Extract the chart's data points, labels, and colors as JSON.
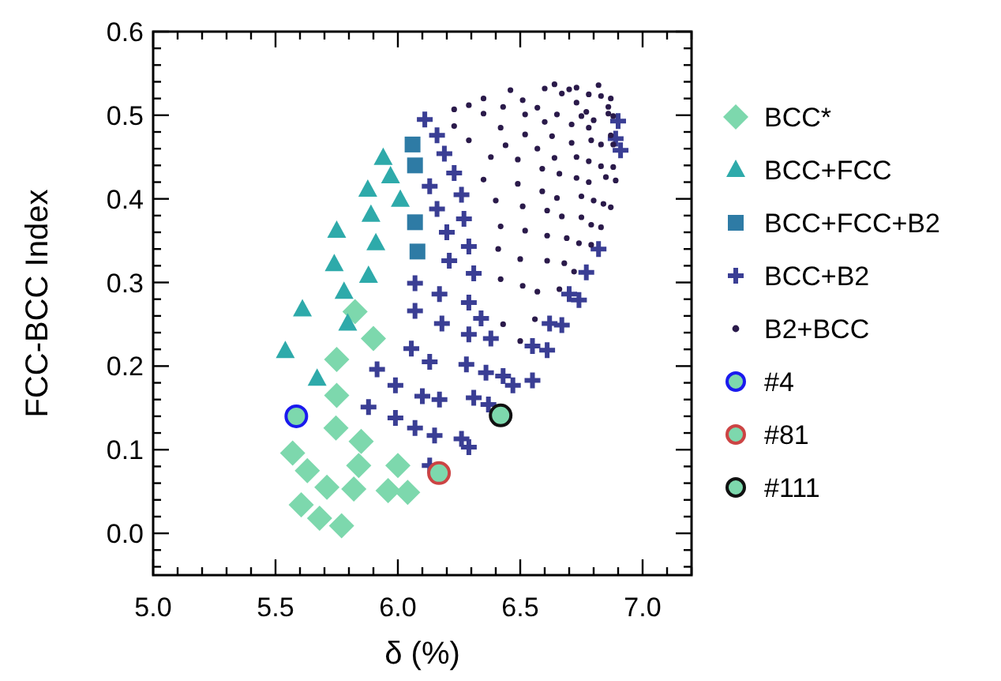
{
  "chart_data": {
    "type": "scatter",
    "xlabel": "δ (%)",
    "ylabel": "FCC-BCC Index",
    "xlim": [
      5.0,
      7.2
    ],
    "ylim": [
      -0.05,
      0.6
    ],
    "xticks": [
      {
        "value": 5.0,
        "label": "5.0"
      },
      {
        "value": 5.1,
        "label": null
      },
      {
        "value": 5.2,
        "label": null
      },
      {
        "value": 5.3,
        "label": null
      },
      {
        "value": 5.4,
        "label": null
      },
      {
        "value": 5.5,
        "label": "5.5"
      },
      {
        "value": 5.6,
        "label": null
      },
      {
        "value": 5.7,
        "label": null
      },
      {
        "value": 5.8,
        "label": null
      },
      {
        "value": 5.9,
        "label": null
      },
      {
        "value": 6.0,
        "label": "6.0"
      },
      {
        "value": 6.1,
        "label": null
      },
      {
        "value": 6.2,
        "label": null
      },
      {
        "value": 6.3,
        "label": null
      },
      {
        "value": 6.4,
        "label": null
      },
      {
        "value": 6.5,
        "label": "6.5"
      },
      {
        "value": 6.6,
        "label": null
      },
      {
        "value": 6.7,
        "label": null
      },
      {
        "value": 6.8,
        "label": null
      },
      {
        "value": 6.9,
        "label": null
      },
      {
        "value": 7.0,
        "label": "7.0"
      },
      {
        "value": 7.1,
        "label": null
      },
      {
        "value": 7.2,
        "label": null
      }
    ],
    "yticks": [
      {
        "value": -0.04,
        "label": null
      },
      {
        "value": -0.02,
        "label": null
      },
      {
        "value": 0.0,
        "label": "0.0"
      },
      {
        "value": 0.02,
        "label": null
      },
      {
        "value": 0.04,
        "label": null
      },
      {
        "value": 0.06,
        "label": null
      },
      {
        "value": 0.08,
        "label": null
      },
      {
        "value": 0.1,
        "label": "0.1"
      },
      {
        "value": 0.12,
        "label": null
      },
      {
        "value": 0.14,
        "label": null
      },
      {
        "value": 0.16,
        "label": null
      },
      {
        "value": 0.18,
        "label": null
      },
      {
        "value": 0.2,
        "label": "0.2"
      },
      {
        "value": 0.22,
        "label": null
      },
      {
        "value": 0.24,
        "label": null
      },
      {
        "value": 0.26,
        "label": null
      },
      {
        "value": 0.28,
        "label": null
      },
      {
        "value": 0.3,
        "label": "0.3"
      },
      {
        "value": 0.32,
        "label": null
      },
      {
        "value": 0.34,
        "label": null
      },
      {
        "value": 0.36,
        "label": null
      },
      {
        "value": 0.38,
        "label": null
      },
      {
        "value": 0.4,
        "label": "0.4"
      },
      {
        "value": 0.42,
        "label": null
      },
      {
        "value": 0.44,
        "label": null
      },
      {
        "value": 0.46,
        "label": null
      },
      {
        "value": 0.48,
        "label": null
      },
      {
        "value": 0.5,
        "label": "0.5"
      },
      {
        "value": 0.52,
        "label": null
      },
      {
        "value": 0.54,
        "label": null
      },
      {
        "value": 0.56,
        "label": null
      },
      {
        "value": 0.58,
        "label": null
      },
      {
        "value": 0.6,
        "label": "0.6"
      }
    ],
    "grid": false,
    "legend": "right",
    "series": [
      {
        "name": "BCC*",
        "color": "#7dd8ad",
        "marker": "diamond",
        "x": [
          5.825,
          5.9,
          5.75,
          5.75,
          5.747,
          5.85,
          5.57,
          5.84,
          6.0,
          5.63,
          5.71,
          5.82,
          5.96,
          6.04,
          5.605,
          5.68,
          5.77
        ],
        "values": [
          0.265,
          0.233,
          0.208,
          0.165,
          0.126,
          0.11,
          0.096,
          0.081,
          0.081,
          0.075,
          0.055,
          0.053,
          0.051,
          0.049,
          0.034,
          0.018,
          0.009
        ]
      },
      {
        "name": "BCC+FCC",
        "color": "#2eaaaa",
        "marker": "triangle",
        "x": [
          5.94,
          5.97,
          5.877,
          6.01,
          5.89,
          5.75,
          5.91,
          5.74,
          5.88,
          5.78,
          5.61,
          5.795,
          5.54,
          5.67
        ],
        "values": [
          0.449,
          0.427,
          0.411,
          0.399,
          0.381,
          0.362,
          0.347,
          0.322,
          0.308,
          0.289,
          0.268,
          0.251,
          0.218,
          0.185
        ]
      },
      {
        "name": "BCC+FCC+B2",
        "color": "#2e7ba5",
        "marker": "square",
        "x": [
          6.06,
          6.07,
          6.07,
          6.08
        ],
        "values": [
          0.465,
          0.44,
          0.372,
          0.337
        ]
      },
      {
        "name": "BCC+B2",
        "color": "#3a3e94",
        "marker": "cross",
        "x": [
          6.11,
          6.16,
          6.13,
          6.16,
          6.07,
          6.17,
          6.07,
          6.055,
          6.13,
          5.915,
          5.99,
          6.1,
          5.88,
          5.99,
          6.07,
          6.15,
          6.13,
          6.19,
          6.23,
          6.26,
          6.27,
          6.2,
          6.29,
          6.21,
          6.31,
          6.29,
          6.9,
          6.89,
          6.91,
          6.82,
          6.77,
          6.7,
          6.74,
          6.18,
          6.34,
          6.29,
          6.38,
          6.62,
          6.67,
          6.55,
          6.61,
          6.28,
          6.36,
          6.43,
          6.47,
          6.55,
          6.17,
          6.31,
          6.37,
          6.26,
          6.29
        ],
        "values": [
          0.495,
          0.476,
          0.415,
          0.388,
          0.299,
          0.286,
          0.266,
          0.221,
          0.205,
          0.196,
          0.177,
          0.164,
          0.151,
          0.138,
          0.126,
          0.117,
          0.081,
          0.454,
          0.431,
          0.405,
          0.376,
          0.36,
          0.343,
          0.326,
          0.311,
          0.276,
          0.493,
          0.472,
          0.458,
          0.34,
          0.312,
          0.286,
          0.279,
          0.251,
          0.257,
          0.238,
          0.233,
          0.251,
          0.249,
          0.224,
          0.219,
          0.202,
          0.192,
          0.188,
          0.177,
          0.183,
          0.16,
          0.162,
          0.154,
          0.113,
          0.103
        ]
      },
      {
        "name": "B2+BCC",
        "color": "#2a1a4a",
        "marker": "circle",
        "x": [
          6.46,
          6.6,
          6.64,
          6.67,
          6.7,
          6.73,
          6.82,
          6.78,
          6.83,
          6.87,
          6.35,
          6.29,
          6.23,
          6.43,
          6.51,
          6.57,
          6.73,
          6.86,
          6.35,
          6.52,
          6.65,
          6.77,
          6.75,
          6.86,
          6.88,
          6.23,
          6.42,
          6.6,
          6.71,
          6.78,
          6.8,
          6.29,
          6.52,
          6.63,
          6.79,
          6.87,
          6.88,
          6.44,
          6.57,
          6.71,
          6.83,
          6.38,
          6.49,
          6.64,
          6.73,
          6.78,
          6.83,
          6.88,
          6.59,
          6.66,
          6.35,
          6.73,
          6.78,
          6.85,
          6.89,
          6.49,
          6.59,
          6.4,
          6.65,
          6.75,
          6.8,
          6.84,
          6.87,
          6.51,
          6.61,
          6.67,
          6.75,
          6.79,
          6.83,
          6.42,
          6.52,
          6.61,
          6.69,
          6.74,
          6.79,
          6.41,
          6.5,
          6.61,
          6.68,
          6.72,
          6.42,
          6.51,
          6.57,
          6.66,
          6.43,
          6.56,
          6.5
        ],
        "values": [
          0.53,
          0.532,
          0.537,
          0.526,
          0.531,
          0.533,
          0.536,
          0.525,
          0.523,
          0.52,
          0.52,
          0.512,
          0.507,
          0.51,
          0.518,
          0.509,
          0.515,
          0.51,
          0.502,
          0.501,
          0.501,
          0.504,
          0.499,
          0.502,
          0.499,
          0.487,
          0.485,
          0.492,
          0.489,
          0.485,
          0.494,
          0.47,
          0.477,
          0.475,
          0.47,
          0.476,
          0.465,
          0.464,
          0.46,
          0.467,
          0.465,
          0.45,
          0.447,
          0.449,
          0.45,
          0.445,
          0.439,
          0.438,
          0.436,
          0.43,
          0.423,
          0.425,
          0.42,
          0.426,
          0.422,
          0.418,
          0.409,
          0.398,
          0.401,
          0.403,
          0.398,
          0.394,
          0.39,
          0.391,
          0.386,
          0.379,
          0.378,
          0.369,
          0.366,
          0.367,
          0.362,
          0.356,
          0.353,
          0.347,
          0.345,
          0.34,
          0.328,
          0.326,
          0.323,
          0.313,
          0.304,
          0.296,
          0.289,
          0.292,
          0.25,
          0.256,
          0.23
        ]
      },
      {
        "name": "#4",
        "color": "#1a1aee",
        "marker": "circle",
        "x": [
          5.585
        ],
        "values": [
          0.14
        ]
      },
      {
        "name": "#81",
        "color": "#cc4444",
        "marker": "circle",
        "x": [
          6.168
        ],
        "values": [
          0.072
        ]
      },
      {
        "name": "#111",
        "color": "#111111",
        "marker": "circle",
        "x": [
          6.42
        ],
        "values": [
          0.141
        ]
      }
    ]
  }
}
